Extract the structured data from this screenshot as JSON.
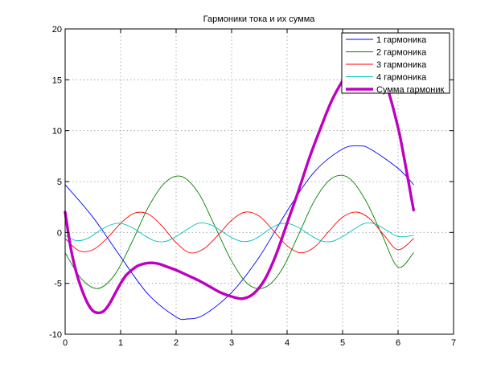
{
  "chart_data": {
    "type": "line",
    "title": "Гармоники тока и их сумма",
    "xlabel": "",
    "ylabel": "",
    "xlim": [
      0,
      7
    ],
    "ylim": [
      -10,
      20
    ],
    "xticks": [
      0,
      1,
      2,
      3,
      4,
      5,
      6,
      7
    ],
    "yticks": [
      -10,
      -5,
      0,
      5,
      10,
      15,
      20
    ],
    "xtick_labels": [
      "0",
      "1",
      "2",
      "3",
      "4",
      "5",
      "6",
      "7"
    ],
    "ytick_labels": [
      "-10",
      "-5",
      "0",
      "5",
      "10",
      "15",
      "20"
    ],
    "grid": true,
    "legend_position": "top-right",
    "series": [
      {
        "name": "1 гармоника",
        "color": "#0000ff",
        "width": "thin",
        "x": [
          0,
          0.5,
          1,
          1.5,
          2,
          2.2,
          2.5,
          3,
          3.5,
          4,
          4.5,
          5,
          5.3,
          5.5,
          6,
          6.28
        ],
        "y": [
          4.7,
          1.5,
          -2.4,
          -6.1,
          -8.3,
          -8.5,
          -8.1,
          -5.9,
          -2.4,
          2.1,
          6.0,
          8.2,
          8.5,
          8.2,
          6.3,
          4.7
        ]
      },
      {
        "name": "2 гармоника",
        "color": "#008000",
        "width": "thin",
        "x": [
          0,
          0.3,
          0.6,
          0.9,
          1.2,
          1.5,
          1.8,
          2.1,
          2.4,
          2.7,
          3.0,
          3.3,
          3.6,
          3.9,
          4.2,
          4.5,
          4.8,
          5.1,
          5.4,
          5.7,
          6.0,
          6.28
        ],
        "y": [
          -2.0,
          -4.6,
          -5.5,
          -4.1,
          -1.0,
          2.5,
          4.9,
          5.5,
          3.9,
          0.6,
          -2.8,
          -5.1,
          -5.4,
          -3.7,
          -0.3,
          3.2,
          5.3,
          5.4,
          3.3,
          -0.1,
          -3.4,
          -2.0
        ]
      },
      {
        "name": "3 гармоника",
        "color": "#ff0000",
        "width": "thin",
        "x": [
          0,
          0.25,
          0.5,
          0.75,
          1.0,
          1.25,
          1.5,
          1.75,
          2.0,
          2.25,
          2.5,
          2.75,
          3.0,
          3.25,
          3.5,
          3.75,
          4.0,
          4.25,
          4.5,
          4.75,
          5.0,
          5.25,
          5.5,
          5.75,
          6.0,
          6.28
        ],
        "y": [
          -0.6,
          -1.8,
          -1.7,
          -0.6,
          0.9,
          1.9,
          1.8,
          0.6,
          -1.0,
          -2.0,
          -1.6,
          -0.3,
          1.2,
          2.0,
          1.6,
          0.2,
          -1.3,
          -2.0,
          -1.4,
          0.1,
          1.5,
          2.0,
          1.3,
          -0.3,
          -1.7,
          -0.6
        ]
      },
      {
        "name": "4 гармоника",
        "color": "#00bfbf",
        "width": "thin",
        "x": [
          0,
          0.2,
          0.4,
          0.6,
          0.8,
          1.0,
          1.2,
          1.4,
          1.6,
          1.8,
          2.0,
          2.2,
          2.4,
          2.6,
          2.8,
          3.0,
          3.2,
          3.4,
          3.6,
          3.8,
          4.0,
          4.2,
          4.4,
          4.6,
          4.8,
          5.0,
          5.2,
          5.4,
          5.6,
          5.8,
          6.0,
          6.28
        ],
        "y": [
          -0.3,
          -0.8,
          -0.6,
          0.1,
          0.7,
          0.9,
          0.5,
          -0.2,
          -0.8,
          -0.9,
          -0.4,
          0.3,
          0.9,
          0.8,
          0.2,
          -0.5,
          -0.9,
          -0.7,
          0.0,
          0.7,
          0.9,
          0.5,
          -0.2,
          -0.8,
          -0.9,
          -0.4,
          0.3,
          0.9,
          0.8,
          0.2,
          -0.4,
          -0.3
        ]
      },
      {
        "name": "Сумма гармоник",
        "color": "#bf00bf",
        "width": "thick",
        "x": [
          0,
          0.1,
          0.2,
          0.3,
          0.4,
          0.5,
          0.6,
          0.7,
          0.8,
          0.9,
          1.0,
          1.1,
          1.2,
          1.3,
          1.4,
          1.5,
          1.6,
          1.7,
          1.8,
          2.0,
          2.2,
          2.4,
          2.6,
          2.8,
          3.0,
          3.2,
          3.4,
          3.6,
          3.8,
          4.0,
          4.2,
          4.4,
          4.6,
          4.8,
          5.0,
          5.2,
          5.4,
          5.6,
          5.8,
          6.0,
          6.1,
          6.2,
          6.28
        ],
        "y": [
          2.0,
          -1.5,
          -3.9,
          -5.6,
          -6.9,
          -7.7,
          -7.9,
          -7.7,
          -7.0,
          -6.0,
          -5.0,
          -4.2,
          -3.7,
          -3.3,
          -3.1,
          -3.0,
          -3.0,
          -3.1,
          -3.3,
          -3.7,
          -4.2,
          -4.7,
          -5.3,
          -5.9,
          -6.3,
          -6.5,
          -6.0,
          -4.6,
          -2.2,
          0.9,
          4.0,
          7.3,
          10.2,
          12.9,
          14.9,
          16.4,
          17.1,
          16.6,
          14.3,
          10.3,
          7.6,
          4.6,
          2.2
        ]
      }
    ]
  }
}
